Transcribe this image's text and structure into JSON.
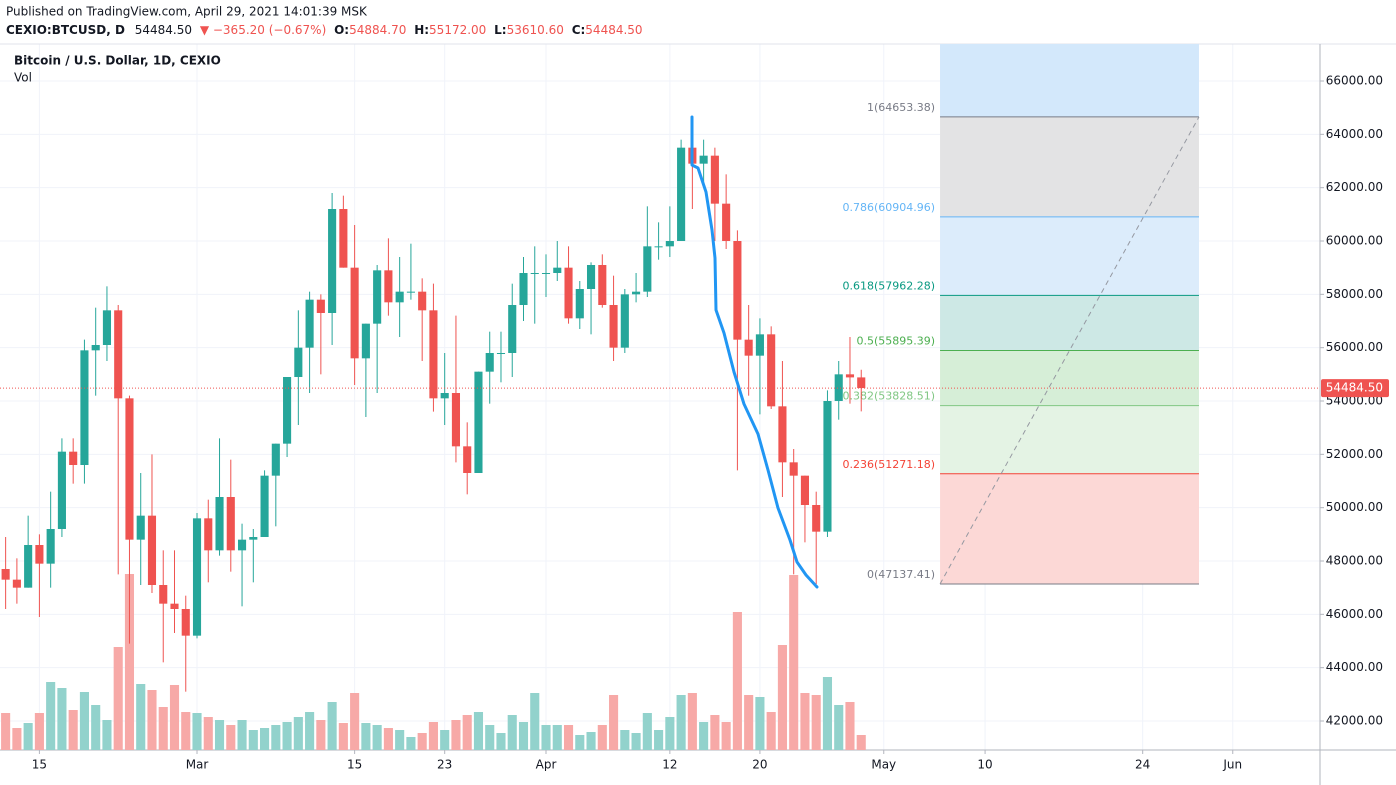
{
  "header": {
    "published": "Published on TradingView.com, April 29, 2021 14:01:39 MSK",
    "symbol": "CEXIO:BTCUSD, D",
    "price": "54484.50",
    "change": "▼ −365.20 (−0.67%)",
    "ohlc": [
      {
        "label": "O:",
        "value": "54884.70"
      },
      {
        "label": "H:",
        "value": "55172.00"
      },
      {
        "label": "L:",
        "value": "53610.60"
      },
      {
        "label": "C:",
        "value": "54484.50"
      }
    ]
  },
  "chart_data": {
    "type": "candlestick",
    "title": "Bitcoin / U.S. Dollar, 1D, CEXIO",
    "volume_label": "Vol",
    "up_color": "#26a69a",
    "down_color": "#ef5350",
    "volume_up_color": "#92d2cc",
    "volume_down_color": "#f7a9a7",
    "x": [
      "2021-02-12",
      "2021-02-13",
      "2021-02-14",
      "2021-02-15",
      "2021-02-16",
      "2021-02-17",
      "2021-02-18",
      "2021-02-19",
      "2021-02-20",
      "2021-02-21",
      "2021-02-22",
      "2021-02-23",
      "2021-02-24",
      "2021-02-25",
      "2021-02-26",
      "2021-02-27",
      "2021-02-28",
      "2021-03-01",
      "2021-03-02",
      "2021-03-03",
      "2021-03-04",
      "2021-03-05",
      "2021-03-06",
      "2021-03-07",
      "2021-03-08",
      "2021-03-09",
      "2021-03-10",
      "2021-03-11",
      "2021-03-12",
      "2021-03-13",
      "2021-03-14",
      "2021-03-15",
      "2021-03-16",
      "2021-03-17",
      "2021-03-18",
      "2021-03-19",
      "2021-03-20",
      "2021-03-21",
      "2021-03-22",
      "2021-03-23",
      "2021-03-24",
      "2021-03-25",
      "2021-03-26",
      "2021-03-27",
      "2021-03-28",
      "2021-03-29",
      "2021-03-30",
      "2021-03-31",
      "2021-04-01",
      "2021-04-02",
      "2021-04-03",
      "2021-04-04",
      "2021-04-05",
      "2021-04-06",
      "2021-04-07",
      "2021-04-08",
      "2021-04-09",
      "2021-04-10",
      "2021-04-11",
      "2021-04-12",
      "2021-04-13",
      "2021-04-14",
      "2021-04-15",
      "2021-04-16",
      "2021-04-17",
      "2021-04-18",
      "2021-04-19",
      "2021-04-20",
      "2021-04-21",
      "2021-04-22",
      "2021-04-23",
      "2021-04-24",
      "2021-04-25",
      "2021-04-26",
      "2021-04-27",
      "2021-04-28",
      "2021-04-29"
    ],
    "open": [
      47700,
      47300,
      47000,
      48600,
      47900,
      49200,
      52100,
      51600,
      55900,
      56100,
      57400,
      54100,
      48800,
      49700,
      47100,
      46400,
      46200,
      45200,
      49600,
      48400,
      50400,
      48400,
      48800,
      48900,
      51200,
      52400,
      54900,
      56000,
      57800,
      57300,
      61200,
      59000,
      55600,
      56900,
      58900,
      57700,
      58100,
      58100,
      57400,
      54100,
      54300,
      52300,
      51300,
      55100,
      55800,
      55800,
      57600,
      58800,
      58800,
      58800,
      59000,
      57100,
      58200,
      59100,
      57600,
      56000,
      58000,
      58100,
      59800,
      59800,
      60000,
      63500,
      62900,
      63200,
      61400,
      60000,
      56300,
      55700,
      56500,
      53800,
      51700,
      51200,
      50100,
      49100,
      54000,
      55000,
      54885
    ],
    "high": [
      48900,
      48100,
      49700,
      49000,
      50600,
      52600,
      52600,
      56300,
      57500,
      58300,
      57600,
      54200,
      51300,
      52000,
      48400,
      48400,
      46700,
      49800,
      50300,
      52600,
      51800,
      49400,
      49200,
      51400,
      52400,
      54900,
      57400,
      58100,
      58000,
      61800,
      61700,
      60600,
      56900,
      59100,
      60100,
      59400,
      59900,
      58600,
      58400,
      55800,
      57200,
      53200,
      55100,
      56600,
      56600,
      58400,
      59400,
      59800,
      59500,
      60000,
      59800,
      58500,
      59200,
      59500,
      58700,
      58200,
      58800,
      61300,
      60700,
      61300,
      63800,
      64653,
      63800,
      63500,
      62500,
      60400,
      57600,
      57100,
      56800,
      55500,
      52200,
      51200,
      50600,
      54400,
      55500,
      56400,
      55172
    ],
    "low": [
      46200,
      46400,
      47000,
      45900,
      47000,
      48900,
      50900,
      50900,
      54200,
      55500,
      47500,
      44900,
      47100,
      46800,
      44200,
      45300,
      43100,
      45100,
      47200,
      48200,
      47600,
      46300,
      47200,
      48900,
      49300,
      51900,
      53100,
      54300,
      55000,
      56100,
      59000,
      54600,
      53400,
      54300,
      57200,
      56400,
      57800,
      55500,
      53600,
      53100,
      51700,
      50500,
      51300,
      53900,
      54700,
      54900,
      57000,
      56900,
      57900,
      58500,
      56900,
      56700,
      56500,
      57500,
      55500,
      55800,
      57700,
      57900,
      59300,
      59400,
      60000,
      61200,
      62100,
      60000,
      59700,
      51400,
      54200,
      53500,
      53700,
      50400,
      47500,
      48700,
      47137,
      48900,
      53300,
      53900,
      53611
    ],
    "close": [
      47300,
      47000,
      48600,
      47900,
      49200,
      52100,
      51600,
      55900,
      56100,
      57400,
      54100,
      48800,
      49700,
      47100,
      46400,
      46200,
      45200,
      49600,
      48400,
      50400,
      48400,
      48800,
      48900,
      51200,
      52400,
      54900,
      56000,
      57800,
      57300,
      61200,
      59000,
      55600,
      56900,
      58900,
      57700,
      58100,
      58100,
      57400,
      54100,
      54300,
      52300,
      51300,
      55100,
      55800,
      55800,
      57600,
      58800,
      58800,
      58800,
      59000,
      57100,
      58200,
      59100,
      57600,
      56000,
      58000,
      58100,
      59800,
      59800,
      60000,
      63500,
      62900,
      63200,
      61400,
      60000,
      56300,
      55700,
      56500,
      53800,
      51700,
      51200,
      50100,
      49100,
      54000,
      55000,
      54885,
      54485
    ],
    "volume": [
      37,
      22,
      27,
      37,
      68,
      62,
      40,
      58,
      45,
      30,
      103,
      176,
      66,
      60,
      43,
      65,
      38,
      37,
      33,
      30,
      25,
      30,
      20,
      22,
      25,
      28,
      33,
      38,
      30,
      48,
      27,
      57,
      27,
      25,
      22,
      20,
      13,
      17,
      28,
      20,
      30,
      35,
      38,
      25,
      17,
      35,
      28,
      57,
      25,
      25,
      25,
      15,
      18,
      25,
      55,
      20,
      17,
      37,
      20,
      33,
      55,
      57,
      28,
      35,
      28,
      138,
      55,
      53,
      38,
      105,
      175,
      57,
      55,
      73,
      45,
      48,
      15
    ],
    "volume_ylim": [
      0,
      706
    ],
    "xlim": [
      "2021-02-11T12:00",
      "2021-06-08T18:00"
    ],
    "xticks": [
      {
        "value": "2021-02-15",
        "label": "15"
      },
      {
        "value": "2021-03-01",
        "label": "Mar"
      },
      {
        "value": "2021-03-15",
        "label": "15"
      },
      {
        "value": "2021-03-23",
        "label": "23"
      },
      {
        "value": "2021-04-01",
        "label": "Apr"
      },
      {
        "value": "2021-04-12",
        "label": "12"
      },
      {
        "value": "2021-04-20",
        "label": "20"
      },
      {
        "value": "2021-05-01",
        "label": "May"
      },
      {
        "value": "2021-05-10",
        "label": "10"
      },
      {
        "value": "2021-05-24",
        "label": "24"
      },
      {
        "value": "2021-06-01",
        "label": "Jun"
      }
    ],
    "ylim": [
      40912.5,
      67387.5
    ],
    "yticks": [
      {
        "value": 42000,
        "label": "42000.00"
      },
      {
        "value": 44000,
        "label": "44000.00"
      },
      {
        "value": 46000,
        "label": "46000.00"
      },
      {
        "value": 48000,
        "label": "48000.00"
      },
      {
        "value": 50000,
        "label": "50000.00"
      },
      {
        "value": 52000,
        "label": "52000.00"
      },
      {
        "value": 54000,
        "label": "54000.00"
      },
      {
        "value": 56000,
        "label": "56000.00"
      },
      {
        "value": 58000,
        "label": "58000.00"
      },
      {
        "value": 60000,
        "label": "60000.00"
      },
      {
        "value": 62000,
        "label": "62000.00"
      },
      {
        "value": 64000,
        "label": "64000.00"
      },
      {
        "value": 66000,
        "label": "66000.00"
      }
    ],
    "grid": true,
    "last_price": 54484.5,
    "last_price_label": "54484.50",
    "last_price_color": "#ef5350",
    "fib": {
      "start": "2021-05-06",
      "end": "2021-05-29",
      "top_color": "#d3e8fb",
      "levels": [
        {
          "price": 64653.38,
          "label": "1(64653.38)",
          "color": "#787b86",
          "fill": "#e3e3e4"
        },
        {
          "price": 60904.96,
          "label": "0.786(60904.96)",
          "color": "#64b5f6",
          "fill": "#dcecfb"
        },
        {
          "price": 57962.28,
          "label": "0.618(57962.28)",
          "color": "#089981",
          "fill": "#cde8e5"
        },
        {
          "price": 55895.39,
          "label": "0.5(55895.39)",
          "color": "#4caf50",
          "fill": "#d6eed7"
        },
        {
          "price": 53828.51,
          "label": "0.382(53828.51)",
          "color": "#81c784",
          "fill": "#e4f3e4"
        },
        {
          "price": 51271.18,
          "label": "0.236(51271.18)",
          "color": "#f44336",
          "fill": "#fcd8d6"
        },
        {
          "price": 47137.41,
          "label": "0(47137.41)",
          "color": "#787b86"
        }
      ]
    }
  }
}
